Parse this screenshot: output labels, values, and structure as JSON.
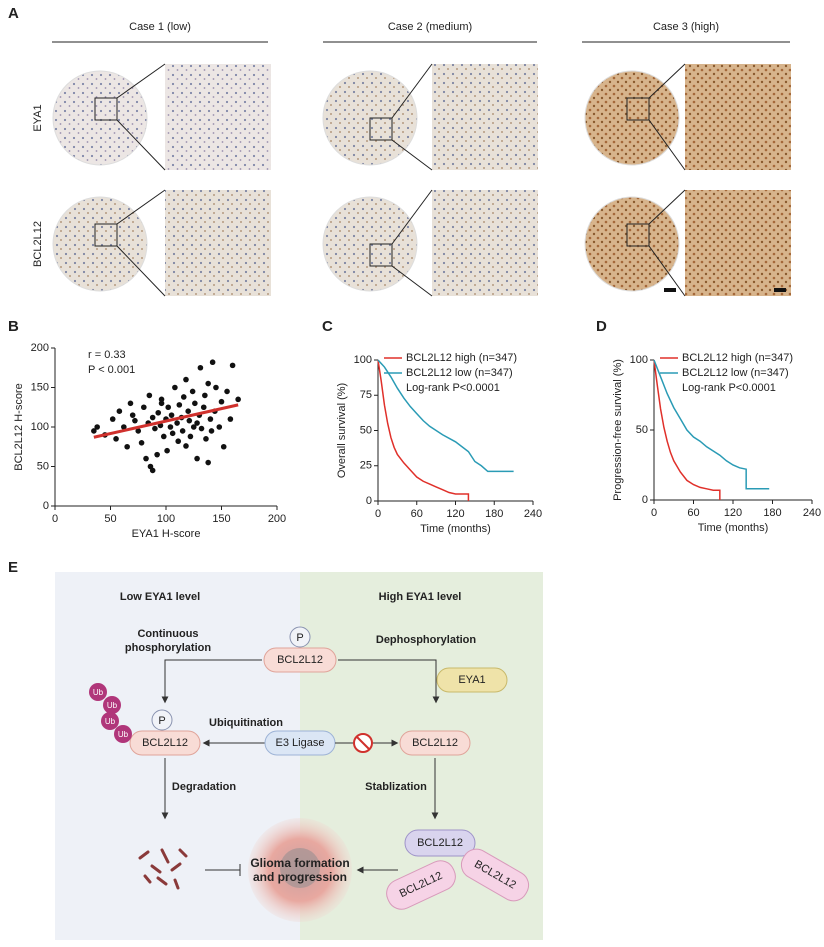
{
  "panel_labels": [
    "A",
    "B",
    "C",
    "D",
    "E"
  ],
  "panel_a": {
    "case_titles": [
      "Case 1 (low)",
      "Case 2 (medium)",
      "Case 3 (high)"
    ],
    "row_labels": [
      "EYA1",
      "BCL2L12"
    ]
  },
  "chart_data": [
    {
      "type": "scatter",
      "xlabel": "EYA1 H-score",
      "ylabel": "BCL2L12 H-score",
      "annotations": [
        "r = 0.33",
        "P < 0.001"
      ],
      "x": [
        35,
        38,
        45,
        52,
        55,
        58,
        62,
        65,
        68,
        70,
        72,
        75,
        78,
        80,
        82,
        84,
        85,
        86,
        88,
        90,
        92,
        93,
        95,
        96,
        98,
        100,
        101,
        102,
        104,
        105,
        106,
        108,
        110,
        111,
        112,
        114,
        115,
        116,
        118,
        120,
        121,
        122,
        124,
        125,
        126,
        128,
        130,
        131,
        132,
        134,
        135,
        136,
        138,
        140,
        141,
        142,
        144,
        145,
        148,
        150,
        152,
        155,
        158,
        160,
        165,
        88,
        96,
        118,
        128,
        138
      ],
      "y": [
        95,
        100,
        90,
        110,
        85,
        120,
        100,
        75,
        130,
        115,
        108,
        95,
        80,
        125,
        60,
        105,
        140,
        50,
        112,
        98,
        65,
        118,
        102,
        135,
        88,
        110,
        70,
        125,
        100,
        115,
        92,
        150,
        105,
        82,
        128,
        112,
        95,
        138,
        76,
        120,
        108,
        88,
        145,
        100,
        130,
        60,
        115,
        175,
        98,
        125,
        140,
        85,
        155,
        110,
        95,
        182,
        120,
        150,
        100,
        132,
        75,
        145,
        110,
        178,
        135,
        45,
        130,
        160,
        105,
        55
      ],
      "color": "#111111",
      "fit": {
        "x": [
          35,
          165
        ],
        "y": [
          87,
          128
        ]
      },
      "fit_color": "#d0312d",
      "xlim": [
        0,
        200
      ],
      "ylim": [
        0,
        200
      ],
      "xticks": [
        0,
        50,
        100,
        150,
        200
      ],
      "yticks": [
        0,
        50,
        100,
        150,
        200
      ]
    },
    {
      "type": "line",
      "xlabel": "Time (months)",
      "ylabel": "Overall survival (%)",
      "annotations": [
        "Log-rank  P<0.0001"
      ],
      "series": [
        {
          "name": "BCL2L12 high (n=347)",
          "color": "#e0302a",
          "x": [
            0,
            5,
            10,
            15,
            20,
            25,
            30,
            40,
            50,
            60,
            70,
            80,
            90,
            100,
            110,
            120,
            140,
            140
          ],
          "values": [
            100,
            85,
            68,
            55,
            45,
            38,
            33,
            27,
            22,
            17,
            14,
            12,
            10,
            8,
            6,
            5,
            5,
            0
          ]
        },
        {
          "name": "BCL2L12 low (n=347)",
          "color": "#2a9bb5",
          "x": [
            0,
            10,
            20,
            30,
            40,
            50,
            60,
            70,
            80,
            90,
            100,
            120,
            140,
            150,
            160,
            170,
            210
          ],
          "values": [
            100,
            95,
            88,
            80,
            73,
            67,
            62,
            57,
            53,
            50,
            47,
            42,
            35,
            28,
            25,
            21,
            21
          ]
        }
      ],
      "xlim": [
        0,
        240
      ],
      "ylim": [
        0,
        100
      ],
      "xticks": [
        0,
        60,
        120,
        180,
        240
      ],
      "yticks": [
        0,
        25,
        50,
        75,
        100
      ]
    },
    {
      "type": "line",
      "xlabel": "Time (months)",
      "ylabel": "Progression-free survival (%)",
      "annotations": [
        "Log-rank  P<0.0001"
      ],
      "series": [
        {
          "name": "BCL2L12 high (n=347)",
          "color": "#e0302a",
          "x": [
            0,
            5,
            10,
            15,
            20,
            25,
            30,
            40,
            50,
            60,
            70,
            80,
            90,
            100,
            100
          ],
          "values": [
            100,
            82,
            65,
            52,
            42,
            34,
            28,
            20,
            14,
            11,
            9,
            8,
            7,
            7,
            0
          ]
        },
        {
          "name": "BCL2L12 low (n=347)",
          "color": "#2a9bb5",
          "x": [
            0,
            10,
            20,
            30,
            40,
            50,
            60,
            70,
            80,
            90,
            100,
            110,
            120,
            130,
            140,
            140,
            175
          ],
          "values": [
            100,
            88,
            76,
            66,
            58,
            50,
            45,
            42,
            38,
            35,
            32,
            28,
            25,
            23,
            22,
            8,
            8
          ]
        }
      ],
      "xlim": [
        0,
        240
      ],
      "ylim": [
        0,
        100
      ],
      "xticks": [
        0,
        60,
        120,
        180,
        240
      ],
      "yticks": [
        0,
        50,
        100
      ]
    }
  ],
  "panel_e": {
    "left_title": "Low EYA1 level",
    "right_title": "High EYA1 level",
    "continuous": [
      "Continuous",
      "phosphorylation"
    ],
    "dephosphorylation": "Dephosphorylation",
    "phospho_tag": "P",
    "bcl2l12": "BCL2L12",
    "eya1": "EYA1",
    "ubiquitination": "Ubiquitination",
    "e3_ligase": "E3 Ligase",
    "ub": "Ub",
    "degradation": "Degradation",
    "stablization": "Stablization",
    "glioma": [
      "Glioma formation",
      "and progression"
    ]
  }
}
